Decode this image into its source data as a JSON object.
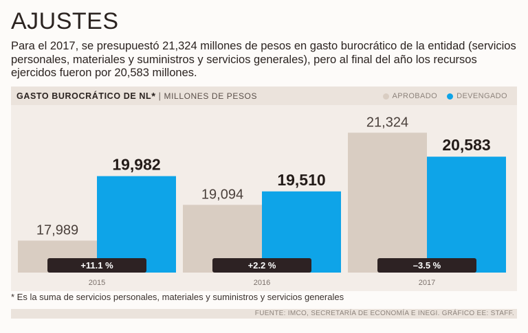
{
  "title": "AJUSTES",
  "lede": "Para el 2017, se presupuestó 21,324 millones de pesos en gasto burocrático de la entidad (servicios personales, materiales y suministros y servicios generales), pero al final del año los recursos ejercidos fueron por 20,583 millones.",
  "footnote": "* Es la suma de servicios personales, materiales y suministros y servicios generales",
  "source": "FUENTE: IMCO, SECRETARÍA DE ECONOMÍA E INEGI. GRÁFICO EE: STAFF.",
  "colors": {
    "aprobado": "#d9cdc2",
    "devengado": "#0ea4e8",
    "badge": "#2d2223"
  },
  "chart_data": {
    "type": "bar",
    "title": "GASTO BUROCRÁTICO DE NL",
    "title_mark": "*",
    "subtitle": "MILLONES DE PESOS",
    "categories": [
      "2015",
      "2016",
      "2017"
    ],
    "series": [
      {
        "name": "APROBADO",
        "values": [
          17989,
          19094,
          21324
        ],
        "labels": [
          "17,989",
          "19,094",
          "21,324"
        ]
      },
      {
        "name": "DEVENGADO",
        "values": [
          19982,
          19510,
          20583
        ],
        "labels": [
          "19,982",
          "19,510",
          "20,583"
        ]
      }
    ],
    "changes": [
      "+11.1 %",
      "+2.2 %",
      "–3.5 %"
    ],
    "legend_position": "top-right",
    "grid": false,
    "ylim": [
      17000,
      21500
    ]
  }
}
